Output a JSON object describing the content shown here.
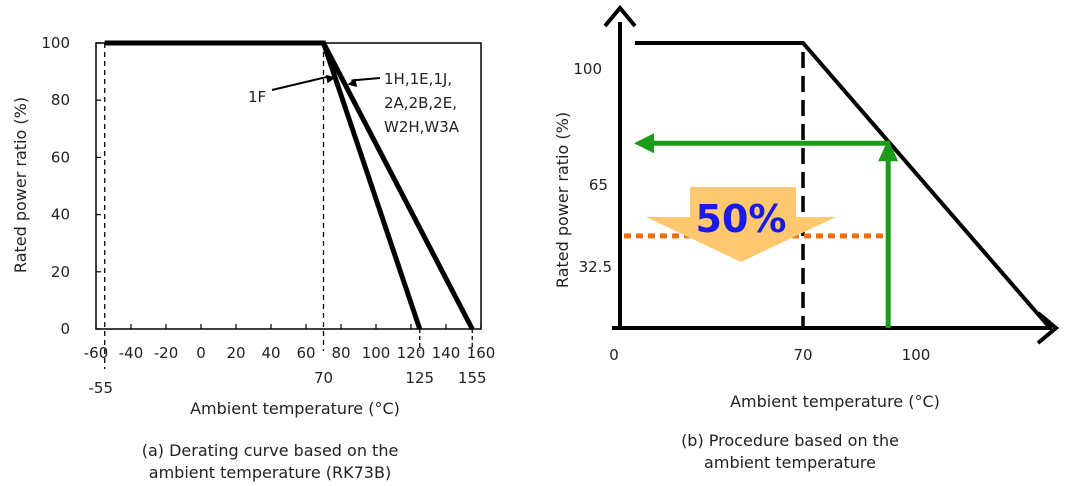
{
  "chart_data": [
    {
      "type": "line",
      "xlabel": "Ambient temperature (°C)",
      "ylabel": "Rated power ratio (%)",
      "caption_line1": "(a) Derating curve based on the",
      "caption_line2": "ambient temperature (RK73B)",
      "xlim": [
        -60,
        160
      ],
      "ylim": [
        0,
        100
      ],
      "x_ticks": [
        "-60",
        "-40",
        "-20",
        "0",
        "20",
        "40",
        "60",
        "80",
        "100",
        "120",
        "140",
        "160"
      ],
      "x_tick_values": [
        -60,
        -40,
        -20,
        0,
        20,
        40,
        60,
        80,
        100,
        120,
        140,
        160
      ],
      "x_extra_ticks": [
        {
          "value": -55,
          "label": "-55"
        },
        {
          "value": 70,
          "label": "70"
        },
        {
          "value": 125,
          "label": "125"
        },
        {
          "value": 155,
          "label": "155"
        }
      ],
      "y_ticks": [
        "0",
        "20",
        "40",
        "60",
        "80",
        "100"
      ],
      "y_tick_values": [
        0,
        20,
        40,
        60,
        80,
        100
      ],
      "series": [
        {
          "name": "1F",
          "x": [
            -55,
            70,
            125
          ],
          "y": [
            100,
            100,
            0
          ]
        },
        {
          "name_lines": [
            "1H,1E,1J,",
            "2A,2B,2E,",
            "W2H,W3A"
          ],
          "x": [
            -55,
            70,
            155
          ],
          "y": [
            100,
            100,
            0
          ]
        }
      ]
    },
    {
      "type": "line",
      "xlabel": "Ambient temperature (°C)",
      "ylabel": "Rated power ratio (%)",
      "caption_line1": "(b) Procedure based on the",
      "caption_line2": "ambient  temperature",
      "origin_label": "0",
      "y_labels": [
        "100",
        "65",
        "32.5"
      ],
      "x_labels": [
        "70",
        "100"
      ],
      "curve": {
        "x": [
          0,
          70,
          155
        ],
        "y": [
          100,
          100,
          0
        ]
      },
      "procedure": {
        "x": 100,
        "y": 65,
        "half_y": 32.5
      },
      "arrow_text": "50%",
      "colors": {
        "green": "#1a9a1a",
        "orange": "#f07010",
        "red_label": "#e02020",
        "blue_text": "#1a1ae6",
        "arrow_fill": "#ffc870"
      }
    }
  ]
}
